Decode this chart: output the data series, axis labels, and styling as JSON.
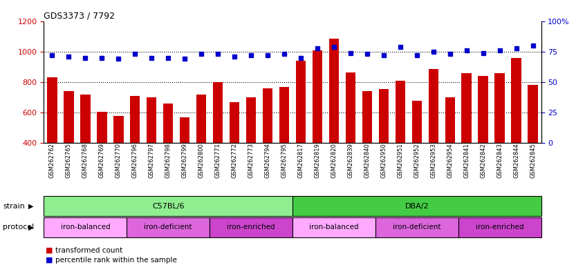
{
  "title": "GDS3373 / 7792",
  "samples": [
    "GSM262762",
    "GSM262765",
    "GSM262768",
    "GSM262769",
    "GSM262770",
    "GSM262796",
    "GSM262797",
    "GSM262798",
    "GSM262799",
    "GSM262800",
    "GSM262771",
    "GSM262772",
    "GSM262773",
    "GSM262794",
    "GSM262795",
    "GSM262817",
    "GSM262819",
    "GSM262820",
    "GSM262839",
    "GSM262840",
    "GSM262950",
    "GSM262951",
    "GSM262952",
    "GSM262953",
    "GSM262954",
    "GSM262841",
    "GSM262842",
    "GSM262843",
    "GSM262844",
    "GSM262845"
  ],
  "red_values": [
    830,
    740,
    720,
    605,
    578,
    710,
    700,
    660,
    570,
    720,
    800,
    670,
    700,
    760,
    770,
    940,
    1010,
    1085,
    865,
    740,
    755,
    810,
    680,
    885,
    700,
    860,
    840,
    860,
    960,
    780
  ],
  "blue_values": [
    72,
    71,
    70,
    70,
    69,
    73,
    70,
    70,
    69,
    73,
    73,
    71,
    72,
    72,
    73,
    70,
    78,
    79,
    74,
    73,
    72,
    79,
    72,
    75,
    73,
    76,
    74,
    76,
    78,
    80
  ],
  "left_ylim": [
    400,
    1200
  ],
  "right_ylim": [
    0,
    100
  ],
  "left_yticks": [
    400,
    600,
    800,
    1000,
    1200
  ],
  "right_yticks": [
    0,
    25,
    50,
    75,
    100
  ],
  "right_yticklabels": [
    "0",
    "25",
    "50",
    "75",
    "100%"
  ],
  "grid_values": [
    600,
    800,
    1000
  ],
  "bar_color": "#cc0000",
  "dot_color": "#0000cc",
  "background_color": "#ffffff",
  "strain_regions": [
    {
      "label": "C57BL/6",
      "start": 0,
      "end": 15,
      "color": "#90ee90"
    },
    {
      "label": "DBA/2",
      "start": 15,
      "end": 30,
      "color": "#44cc44"
    }
  ],
  "protocol_regions": [
    {
      "label": "iron-balanced",
      "start": 0,
      "end": 5,
      "color": "#ffaaff"
    },
    {
      "label": "iron-deficient",
      "start": 5,
      "end": 10,
      "color": "#dd66dd"
    },
    {
      "label": "iron-enriched",
      "start": 10,
      "end": 15,
      "color": "#cc44cc"
    },
    {
      "label": "iron-balanced",
      "start": 15,
      "end": 20,
      "color": "#ffaaff"
    },
    {
      "label": "iron-deficient",
      "start": 20,
      "end": 25,
      "color": "#dd66dd"
    },
    {
      "label": "iron-enriched",
      "start": 25,
      "end": 30,
      "color": "#cc44cc"
    }
  ]
}
